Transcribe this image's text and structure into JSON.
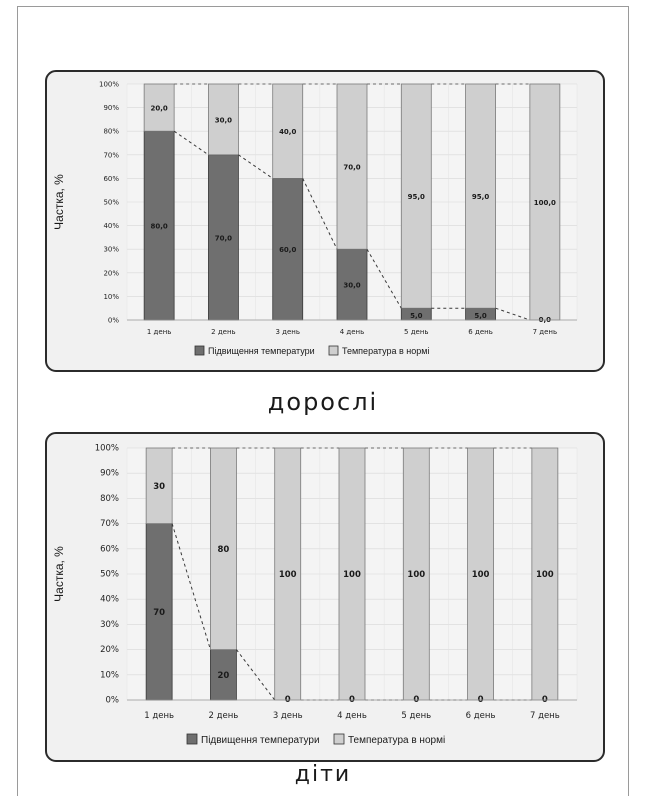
{
  "chart_data": [
    {
      "type": "bar",
      "stacked": true,
      "caption": "дорослі",
      "ylabel": "Частка, %",
      "ylim": [
        0,
        100
      ],
      "y_ticks": [
        "0%",
        "10%",
        "20%",
        "30%",
        "40%",
        "50%",
        "60%",
        "70%",
        "80%",
        "90%",
        "100%"
      ],
      "categories": [
        "1 день",
        "2 день",
        "3 день",
        "4 день",
        "5 день",
        "6 день",
        "7 день"
      ],
      "series": [
        {
          "name": "Підвищення температури",
          "color": "#6f6f6f",
          "values": [
            80,
            70,
            60,
            30,
            5,
            5,
            0
          ],
          "labels": [
            "80,0",
            "70,0",
            "60,0",
            "30,0",
            "5,0",
            "5,0",
            "0,0"
          ]
        },
        {
          "name": "Температура в нормі",
          "color": "#cfcfcf",
          "values": [
            20,
            30,
            40,
            70,
            95,
            95,
            100
          ],
          "labels": [
            "20,0",
            "30,0",
            "40,0",
            "70,0",
            "95,0",
            "95,0",
            "100,0"
          ]
        }
      ],
      "grid": true,
      "legend_position": "bottom"
    },
    {
      "type": "bar",
      "stacked": true,
      "caption": "діти",
      "ylabel": "Частка, %",
      "ylim": [
        0,
        100
      ],
      "y_ticks": [
        "0%",
        "10%",
        "20%",
        "30%",
        "40%",
        "50%",
        "60%",
        "70%",
        "80%",
        "90%",
        "100%"
      ],
      "categories": [
        "1 день",
        "2 день",
        "3 день",
        "4 день",
        "5 день",
        "6 день",
        "7 день"
      ],
      "series": [
        {
          "name": "Підвищення температури",
          "color": "#6f6f6f",
          "values": [
            70,
            20,
            0,
            0,
            0,
            0,
            0
          ],
          "labels": [
            "70",
            "20",
            "0",
            "0",
            "0",
            "0",
            "0"
          ]
        },
        {
          "name": "Температура в нормі",
          "color": "#cfcfcf",
          "values": [
            30,
            80,
            100,
            100,
            100,
            100,
            100
          ],
          "labels": [
            "30",
            "80",
            "100",
            "100",
            "100",
            "100",
            "100"
          ]
        }
      ],
      "grid": true,
      "legend_position": "bottom"
    }
  ]
}
